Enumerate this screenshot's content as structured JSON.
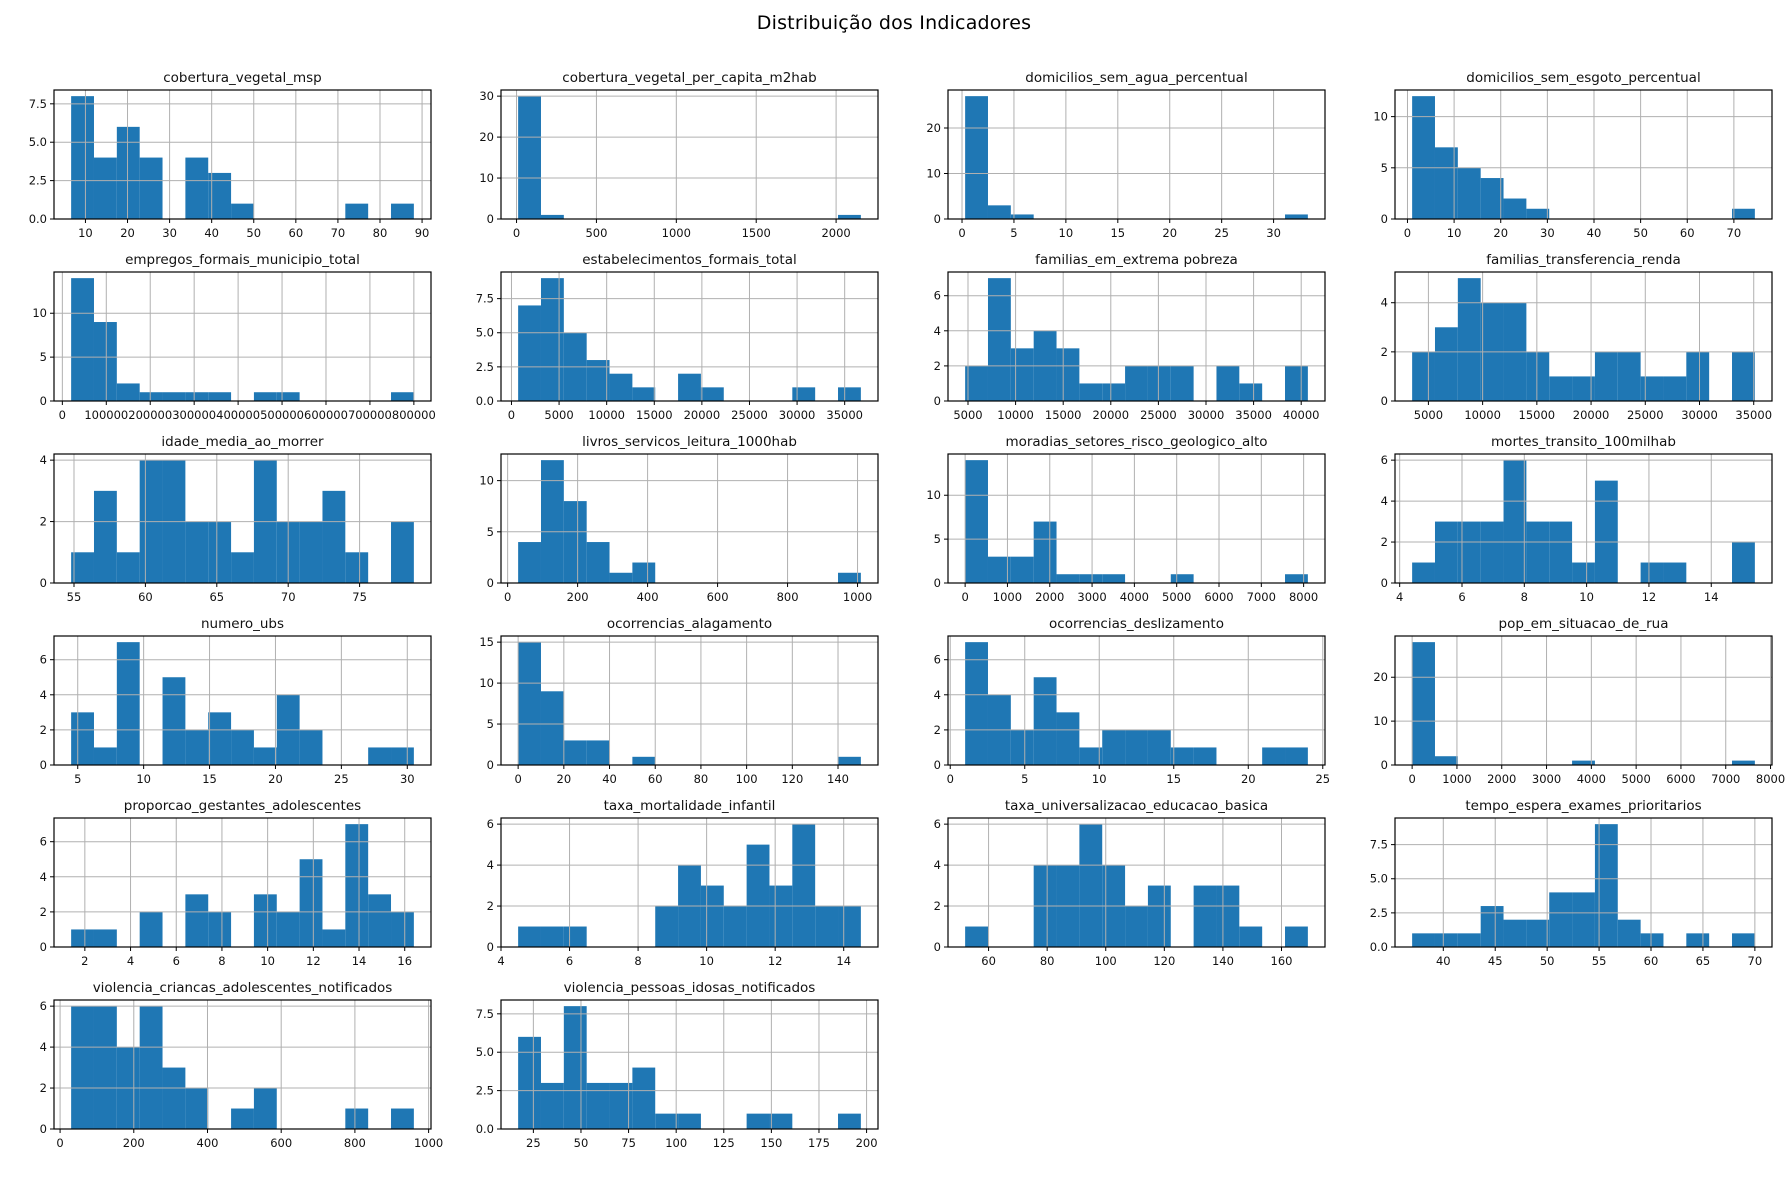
{
  "figure": {
    "suptitle": "Distribuição dos Indicadores"
  },
  "style": {
    "bar_color": "#1f77b4",
    "grid_color": "#b0b0b0",
    "spine_color": "#000000",
    "text_color": "#111111",
    "background": "#ffffff"
  },
  "chart_data": [
    {
      "type": "histogram",
      "title": "cobertura_vegetal_msp",
      "bin_start": 6.6,
      "bin_width": 5.43,
      "counts": [
        8,
        4,
        6,
        4,
        0,
        4,
        3,
        1,
        0,
        0,
        0,
        0,
        1,
        0,
        1
      ],
      "xticks": [
        10,
        20,
        30,
        40,
        50,
        60,
        70,
        80,
        90
      ],
      "xtick_labels": [
        "10",
        "20",
        "30",
        "40",
        "50",
        "60",
        "70",
        "80",
        "90"
      ],
      "yticks": [
        0,
        2.5,
        5,
        7.5
      ],
      "ytick_labels": [
        "0.0",
        "2.5",
        "5.0",
        "7.5"
      ],
      "ylim": 8.4,
      "grid": true
    },
    {
      "type": "histogram",
      "title": "cobertura_vegetal_per_capita_m2hab",
      "bin_start": 10,
      "bin_width": 143,
      "counts": [
        30,
        1,
        0,
        0,
        0,
        0,
        0,
        0,
        0,
        0,
        0,
        0,
        0,
        0,
        1
      ],
      "xticks": [
        0,
        500,
        1000,
        1500,
        2000
      ],
      "xtick_labels": [
        "0",
        "500",
        "1000",
        "1500",
        "2000"
      ],
      "yticks": [
        0,
        10,
        20,
        30
      ],
      "ytick_labels": [
        "0",
        "10",
        "20",
        "30"
      ],
      "ylim": 31.5,
      "grid": true
    },
    {
      "type": "histogram",
      "title": "domicilios_sem_agua_percentual",
      "bin_start": 0.3,
      "bin_width": 2.2,
      "counts": [
        27,
        3,
        1,
        0,
        0,
        0,
        0,
        0,
        0,
        0,
        0,
        0,
        0,
        0,
        1
      ],
      "xticks": [
        0,
        5,
        10,
        15,
        20,
        25,
        30
      ],
      "xtick_labels": [
        "0",
        "5",
        "10",
        "15",
        "20",
        "25",
        "30"
      ],
      "yticks": [
        0,
        10,
        20
      ],
      "ytick_labels": [
        "0",
        "10",
        "20"
      ],
      "ylim": 28.35,
      "grid": true
    },
    {
      "type": "histogram",
      "title": "domicilios_sem_esgoto_percentual",
      "bin_start": 1.0,
      "bin_width": 4.9,
      "counts": [
        12,
        7,
        5,
        4,
        2,
        1,
        0,
        0,
        0,
        0,
        0,
        0,
        0,
        0,
        1
      ],
      "xticks": [
        0,
        10,
        20,
        30,
        40,
        50,
        60,
        70
      ],
      "xtick_labels": [
        "0",
        "10",
        "20",
        "30",
        "40",
        "50",
        "60",
        "70"
      ],
      "yticks": [
        0,
        5,
        10
      ],
      "ytick_labels": [
        "0",
        "5",
        "10"
      ],
      "ylim": 12.6,
      "grid": true
    },
    {
      "type": "histogram",
      "title": "empregos_formais_municipio_total",
      "bin_start": 20000,
      "bin_width": 52000,
      "counts": [
        14,
        9,
        2,
        1,
        1,
        1,
        1,
        0,
        1,
        1,
        0,
        0,
        0,
        0,
        1
      ],
      "xticks": [
        0,
        100000,
        200000,
        300000,
        400000,
        500000,
        600000,
        700000,
        800000
      ],
      "xtick_labels": [
        "0",
        "100000",
        "200000",
        "300000",
        "400000",
        "500000",
        "600000",
        "700000",
        "800000"
      ],
      "yticks": [
        0,
        5,
        10
      ],
      "ytick_labels": [
        "0",
        "5",
        "10"
      ],
      "ylim": 14.7,
      "grid": true
    },
    {
      "type": "histogram",
      "title": "estabelecimentos_formais_total",
      "bin_start": 700,
      "bin_width": 2400,
      "counts": [
        7,
        9,
        5,
        3,
        2,
        1,
        0,
        2,
        1,
        0,
        0,
        0,
        1,
        0,
        1
      ],
      "xticks": [
        0,
        5000,
        10000,
        15000,
        20000,
        25000,
        30000,
        35000
      ],
      "xtick_labels": [
        "0",
        "5000",
        "10000",
        "15000",
        "20000",
        "25000",
        "30000",
        "35000"
      ],
      "yticks": [
        0,
        2.5,
        5,
        7.5
      ],
      "ytick_labels": [
        "0.0",
        "2.5",
        "5.0",
        "7.5"
      ],
      "ylim": 9.45,
      "grid": true
    },
    {
      "type": "histogram",
      "title": "familias_em_extrema pobreza",
      "bin_start": 4700,
      "bin_width": 2400,
      "counts": [
        2,
        7,
        3,
        4,
        3,
        1,
        1,
        2,
        2,
        2,
        0,
        2,
        1,
        0,
        2
      ],
      "xticks": [
        5000,
        10000,
        15000,
        20000,
        25000,
        30000,
        35000,
        40000
      ],
      "xtick_labels": [
        "5000",
        "10000",
        "15000",
        "20000",
        "25000",
        "30000",
        "35000",
        "40000"
      ],
      "yticks": [
        0,
        2,
        4,
        6
      ],
      "ytick_labels": [
        "0",
        "2",
        "4",
        "6"
      ],
      "ylim": 7.35,
      "grid": true
    },
    {
      "type": "histogram",
      "title": "familias_transferencia_renda",
      "bin_start": 3500,
      "bin_width": 2107,
      "counts": [
        2,
        3,
        5,
        4,
        4,
        2,
        1,
        1,
        2,
        2,
        1,
        1,
        2,
        0,
        2
      ],
      "xticks": [
        5000,
        10000,
        15000,
        20000,
        25000,
        30000,
        35000
      ],
      "xtick_labels": [
        "5000",
        "10000",
        "15000",
        "20000",
        "25000",
        "30000",
        "35000"
      ],
      "yticks": [
        0,
        2,
        4
      ],
      "ytick_labels": [
        "0",
        "2",
        "4"
      ],
      "ylim": 5.25,
      "grid": true
    },
    {
      "type": "histogram",
      "title": "idade_media_ao_morrer",
      "bin_start": 54.8,
      "bin_width": 1.6,
      "counts": [
        1,
        3,
        1,
        4,
        4,
        2,
        2,
        1,
        4,
        2,
        2,
        3,
        1,
        0,
        2
      ],
      "xticks": [
        55,
        60,
        65,
        70,
        75
      ],
      "xtick_labels": [
        "55",
        "60",
        "65",
        "70",
        "75"
      ],
      "yticks": [
        0,
        2,
        4
      ],
      "ytick_labels": [
        "0",
        "2",
        "4"
      ],
      "ylim": 4.2,
      "grid": true
    },
    {
      "type": "histogram",
      "title": "livros_servicos_leitura_1000hab",
      "bin_start": 30,
      "bin_width": 65.3,
      "counts": [
        4,
        12,
        8,
        4,
        1,
        2,
        0,
        0,
        0,
        0,
        0,
        0,
        0,
        0,
        1
      ],
      "xticks": [
        0,
        200,
        400,
        600,
        800,
        1000
      ],
      "xtick_labels": [
        "0",
        "200",
        "400",
        "600",
        "800",
        "1000"
      ],
      "yticks": [
        0,
        5,
        10
      ],
      "ytick_labels": [
        "0",
        "5",
        "10"
      ],
      "ylim": 12.6,
      "grid": true
    },
    {
      "type": "histogram",
      "title": "moradias_setores_risco_geologico_alto",
      "bin_start": 0,
      "bin_width": 540,
      "counts": [
        14,
        3,
        3,
        7,
        1,
        1,
        1,
        0,
        0,
        1,
        0,
        0,
        0,
        0,
        1
      ],
      "xticks": [
        0,
        1000,
        2000,
        3000,
        4000,
        5000,
        6000,
        7000,
        8000
      ],
      "xtick_labels": [
        "0",
        "1000",
        "2000",
        "3000",
        "4000",
        "5000",
        "6000",
        "7000",
        "8000"
      ],
      "yticks": [
        0,
        5,
        10
      ],
      "ytick_labels": [
        "0",
        "5",
        "10"
      ],
      "ylim": 14.7,
      "grid": true
    },
    {
      "type": "histogram",
      "title": "mortes_transito_100milhab",
      "bin_start": 4.4,
      "bin_width": 0.7333,
      "counts": [
        1,
        3,
        3,
        3,
        6,
        3,
        3,
        1,
        5,
        0,
        1,
        1,
        0,
        0,
        2
      ],
      "xticks": [
        4,
        6,
        8,
        10,
        12,
        14,
        16
      ],
      "xtick_labels": [
        "4",
        "6",
        "8",
        "10",
        "12",
        "14",
        "16"
      ],
      "yticks": [
        0,
        2,
        4,
        6
      ],
      "ytick_labels": [
        "0",
        "2",
        "4",
        "6"
      ],
      "ylim": 6.3,
      "grid": true
    },
    {
      "type": "histogram",
      "title": "numero_ubs",
      "bin_start": 4.5,
      "bin_width": 1.7333,
      "counts": [
        3,
        1,
        7,
        0,
        5,
        2,
        3,
        2,
        1,
        4,
        2,
        0,
        0,
        1,
        1
      ],
      "xticks": [
        5,
        10,
        15,
        20,
        25,
        30
      ],
      "xtick_labels": [
        "5",
        "10",
        "15",
        "20",
        "25",
        "30"
      ],
      "yticks": [
        0,
        2,
        4,
        6
      ],
      "ytick_labels": [
        "0",
        "2",
        "4",
        "6"
      ],
      "ylim": 7.35,
      "grid": true
    },
    {
      "type": "histogram",
      "title": "ocorrencias_alagamento",
      "bin_start": 0,
      "bin_width": 10,
      "counts": [
        15,
        9,
        3,
        3,
        0,
        1,
        0,
        0,
        0,
        0,
        0,
        0,
        0,
        0,
        1
      ],
      "xticks": [
        0,
        20,
        40,
        60,
        80,
        100,
        120,
        140
      ],
      "xtick_labels": [
        "0",
        "20",
        "40",
        "60",
        "80",
        "100",
        "120",
        "140"
      ],
      "yticks": [
        0,
        5,
        10,
        15
      ],
      "ytick_labels": [
        "0",
        "5",
        "10",
        "15"
      ],
      "ylim": 15.75,
      "grid": true
    },
    {
      "type": "histogram",
      "title": "ocorrencias_deslizamento",
      "bin_start": 1,
      "bin_width": 1.5333,
      "counts": [
        7,
        4,
        2,
        5,
        3,
        1,
        2,
        2,
        2,
        1,
        1,
        0,
        0,
        1,
        1
      ],
      "xticks": [
        0,
        5,
        10,
        15,
        20,
        25
      ],
      "xtick_labels": [
        "0",
        "5",
        "10",
        "15",
        "20",
        "25"
      ],
      "yticks": [
        0,
        2,
        4,
        6
      ],
      "ytick_labels": [
        "0",
        "2",
        "4",
        "6"
      ],
      "ylim": 7.35,
      "grid": true
    },
    {
      "type": "histogram",
      "title": "pop_em_situacao_de_rua",
      "bin_start": 0,
      "bin_width": 510,
      "counts": [
        28,
        2,
        0,
        0,
        0,
        0,
        0,
        1,
        0,
        0,
        0,
        0,
        0,
        0,
        1
      ],
      "xticks": [
        0,
        1000,
        2000,
        3000,
        4000,
        5000,
        6000,
        7000,
        8000
      ],
      "xtick_labels": [
        "0",
        "1000",
        "2000",
        "3000",
        "4000",
        "5000",
        "6000",
        "7000",
        "8000"
      ],
      "yticks": [
        0,
        10,
        20
      ],
      "ytick_labels": [
        "0",
        "10",
        "20"
      ],
      "ylim": 29.4,
      "grid": true
    },
    {
      "type": "histogram",
      "title": "proporcao_gestantes_adolescentes",
      "bin_start": 1.4,
      "bin_width": 1.0,
      "counts": [
        1,
        1,
        0,
        2,
        0,
        3,
        2,
        0,
        3,
        2,
        5,
        1,
        7,
        3,
        2
      ],
      "xticks": [
        2,
        4,
        6,
        8,
        10,
        12,
        14,
        16
      ],
      "xtick_labels": [
        "2",
        "4",
        "6",
        "8",
        "10",
        "12",
        "14",
        "16"
      ],
      "yticks": [
        0,
        2,
        4,
        6
      ],
      "ytick_labels": [
        "0",
        "2",
        "4",
        "6"
      ],
      "ylim": 7.35,
      "grid": true
    },
    {
      "type": "histogram",
      "title": "taxa_mortalidade_infantil",
      "bin_start": 4.5,
      "bin_width": 0.6667,
      "counts": [
        1,
        1,
        1,
        0,
        0,
        0,
        2,
        4,
        3,
        2,
        5,
        3,
        6,
        2,
        2
      ],
      "xticks": [
        4,
        6,
        8,
        10,
        12,
        14
      ],
      "xtick_labels": [
        "4",
        "6",
        "8",
        "10",
        "12",
        "14"
      ],
      "yticks": [
        0,
        2,
        4,
        6
      ],
      "ytick_labels": [
        "0",
        "2",
        "4",
        "6"
      ],
      "ylim": 6.3,
      "grid": true
    },
    {
      "type": "histogram",
      "title": "taxa_universalizacao_educacao_basica",
      "bin_start": 52,
      "bin_width": 7.8,
      "counts": [
        1,
        0,
        0,
        4,
        4,
        6,
        4,
        2,
        3,
        0,
        3,
        3,
        1,
        0,
        1
      ],
      "xticks": [
        60,
        80,
        100,
        120,
        140,
        160
      ],
      "xtick_labels": [
        "60",
        "80",
        "100",
        "120",
        "140",
        "160"
      ],
      "yticks": [
        0,
        2,
        4,
        6
      ],
      "ytick_labels": [
        "0",
        "2",
        "4",
        "6"
      ],
      "ylim": 6.3,
      "grid": true
    },
    {
      "type": "histogram",
      "title": "tempo_espera_exames_prioritarios",
      "bin_start": 37,
      "bin_width": 2.2,
      "counts": [
        1,
        1,
        1,
        3,
        2,
        2,
        4,
        4,
        9,
        2,
        1,
        0,
        1,
        0,
        1
      ],
      "xticks": [
        40,
        45,
        50,
        55,
        60,
        65,
        70
      ],
      "xtick_labels": [
        "40",
        "45",
        "50",
        "55",
        "60",
        "65",
        "70"
      ],
      "yticks": [
        0,
        2.5,
        5,
        7.5
      ],
      "ytick_labels": [
        "0.0",
        "2.5",
        "5.0",
        "7.5"
      ],
      "ylim": 9.45,
      "grid": true
    },
    {
      "type": "histogram",
      "title": "violencia_criancas_adolescentes_notificados",
      "bin_start": 30,
      "bin_width": 62,
      "counts": [
        6,
        6,
        4,
        6,
        3,
        2,
        0,
        1,
        2,
        0,
        0,
        0,
        1,
        0,
        1
      ],
      "xticks": [
        0,
        200,
        400,
        600,
        800,
        1000
      ],
      "xtick_labels": [
        "0",
        "200",
        "400",
        "600",
        "800",
        "1000"
      ],
      "yticks": [
        0,
        2,
        4,
        6
      ],
      "ytick_labels": [
        "0",
        "2",
        "4",
        "6"
      ],
      "ylim": 6.3,
      "grid": true
    },
    {
      "type": "histogram",
      "title": "violencia_pessoas_idosas_notificados",
      "bin_start": 17,
      "bin_width": 12,
      "counts": [
        6,
        3,
        8,
        3,
        3,
        4,
        1,
        1,
        0,
        0,
        1,
        1,
        0,
        0,
        1
      ],
      "xticks": [
        25,
        50,
        75,
        100,
        125,
        150,
        175,
        200
      ],
      "xtick_labels": [
        "25",
        "50",
        "75",
        "100",
        "125",
        "150",
        "175",
        "200"
      ],
      "yticks": [
        0,
        2.5,
        5,
        7.5
      ],
      "ytick_labels": [
        "0.0",
        "2.5",
        "5.0",
        "7.5"
      ],
      "ylim": 8.4,
      "grid": true
    }
  ]
}
